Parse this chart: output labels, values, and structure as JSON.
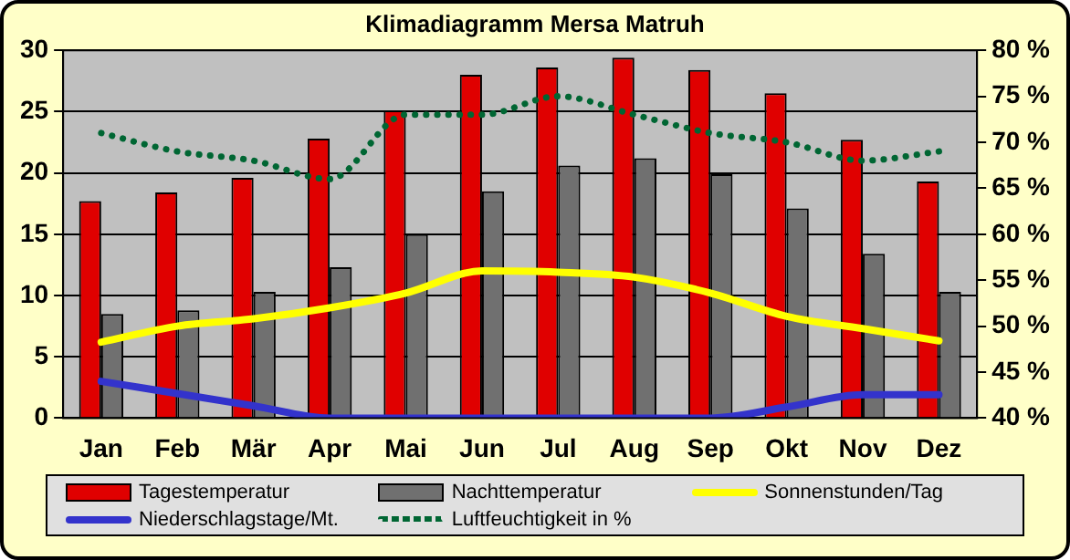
{
  "chart_data": {
    "type": "bar",
    "title": "Klimadiagramm Mersa Matruh",
    "categories": [
      "Jan",
      "Feb",
      "Mär",
      "Apr",
      "Mai",
      "Jun",
      "Jul",
      "Aug",
      "Sep",
      "Okt",
      "Nov",
      "Dez"
    ],
    "series": [
      {
        "name": "Tagestemperatur",
        "color": "#e00000",
        "values": [
          17.7,
          18.4,
          19.6,
          22.8,
          25.1,
          28.0,
          28.6,
          29.4,
          28.4,
          26.5,
          22.7,
          19.3
        ]
      },
      {
        "name": "Nachttemperatur",
        "color": "#707070",
        "values": [
          8.5,
          8.8,
          10.3,
          12.3,
          15.0,
          18.5,
          20.6,
          21.2,
          19.9,
          17.1,
          13.4,
          10.3
        ]
      },
      {
        "name": "Sonnenstunden/Tag",
        "type": "line",
        "color": "#ffff00",
        "values": [
          6.2,
          7.5,
          8.1,
          9.0,
          10.2,
          12.0,
          11.9,
          11.5,
          10.2,
          8.3,
          7.3,
          6.3
        ]
      },
      {
        "name": "Niederschlagstage/Mt.",
        "type": "line",
        "color": "#3333cc",
        "values": [
          3.0,
          2.0,
          1.0,
          0,
          0,
          0,
          0,
          0,
          0,
          0.9,
          1.9,
          1.9
        ]
      },
      {
        "name": "Luftfeuchtigkeit in %",
        "type": "line",
        "axis": "y2",
        "line_style": "dotted",
        "color": "#006633",
        "values": [
          71,
          69,
          68,
          66,
          73,
          73,
          75,
          73,
          71,
          70,
          68,
          69
        ]
      }
    ],
    "ylim": [
      0,
      30
    ],
    "yticks": [
      0,
      5,
      10,
      15,
      20,
      25,
      30
    ],
    "y2lim": [
      40,
      80
    ],
    "y2ticks": [
      {
        "value": 40,
        "label": "40 %"
      },
      {
        "value": 45,
        "label": "45 %"
      },
      {
        "value": 50,
        "label": "50 %"
      },
      {
        "value": 55,
        "label": "55 %"
      },
      {
        "value": 60,
        "label": "60 %"
      },
      {
        "value": 65,
        "label": "65 %"
      },
      {
        "value": 70,
        "label": "70 %"
      },
      {
        "value": 75,
        "label": "75 %"
      },
      {
        "value": 80,
        "label": "80 %"
      }
    ],
    "grid": "y",
    "legend": "bottom",
    "marker": "none"
  }
}
